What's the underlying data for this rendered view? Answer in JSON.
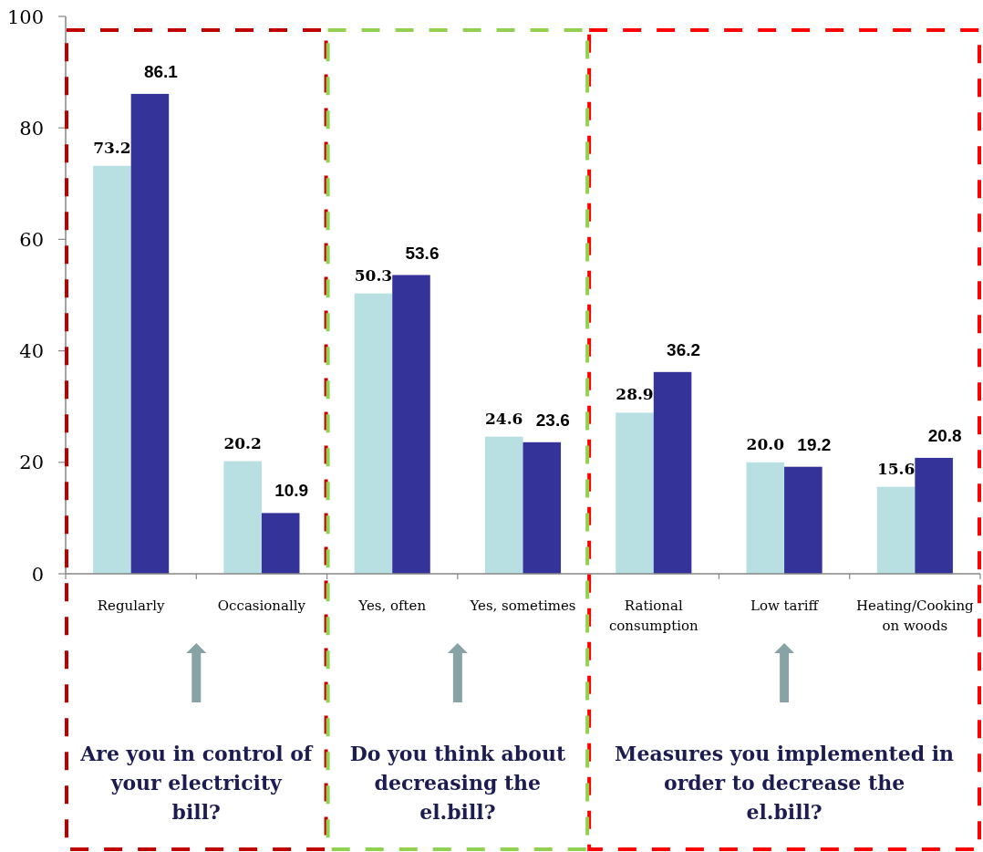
{
  "chart_data": {
    "type": "bar",
    "categories": [
      "Regularly",
      "Occasionally",
      "Yes, often",
      "Yes, sometimes",
      "Rational consumption",
      "Low tariff",
      "Heating/Cooking on woods"
    ],
    "series": [
      {
        "color": "#b8dfe2",
        "values": [
          73.2,
          20.2,
          50.3,
          24.6,
          28.9,
          20.0,
          15.6
        ],
        "value_labels": [
          "73.2",
          "20.2",
          "50.3",
          "24.6",
          "28.9",
          "20.0",
          "15.6"
        ]
      },
      {
        "color": "#343399",
        "values": [
          86.1,
          10.9,
          53.6,
          23.6,
          36.2,
          19.2,
          20.8
        ],
        "value_labels": [
          "86.1",
          "10.9",
          "53.6",
          "23.6",
          "36.2",
          "19.2",
          "20.8"
        ]
      }
    ],
    "ylim": [
      0,
      100
    ],
    "yticks": [
      0,
      20,
      40,
      60,
      80,
      100
    ],
    "annotations": [
      "Are you in control of\nyour electricity\nbill?",
      "Do you think about\ndecreasing the\nel.bill?",
      "Measures you implemented in\norder to decrease the\nel.bill?"
    ]
  }
}
